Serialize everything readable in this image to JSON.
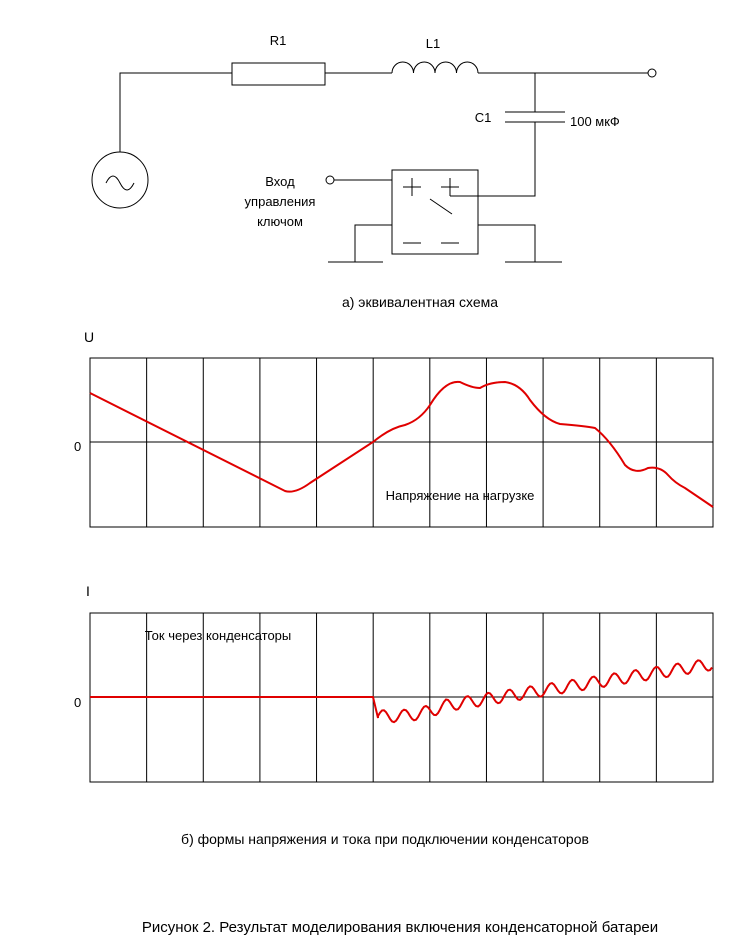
{
  "schematic": {
    "r1": "R1",
    "l1": "L1",
    "c1": "C1",
    "c1_value": "100 мкФ",
    "control_input": [
      "Вход",
      "управления",
      "ключом"
    ],
    "caption": "а) эквивалентная схема"
  },
  "voltage_plot": {
    "axis_label": "U",
    "zero_label": "0",
    "annotation": "Напряжение на нагрузке"
  },
  "current_plot": {
    "axis_label": "I",
    "zero_label": "0",
    "annotation": "Ток через конденсаторы"
  },
  "plots_caption": "б) формы напряжения и тока при подключении конденсаторов",
  "figure_caption": "Рисунок 2. Результат моделирования включения конденсаторной батареи"
}
